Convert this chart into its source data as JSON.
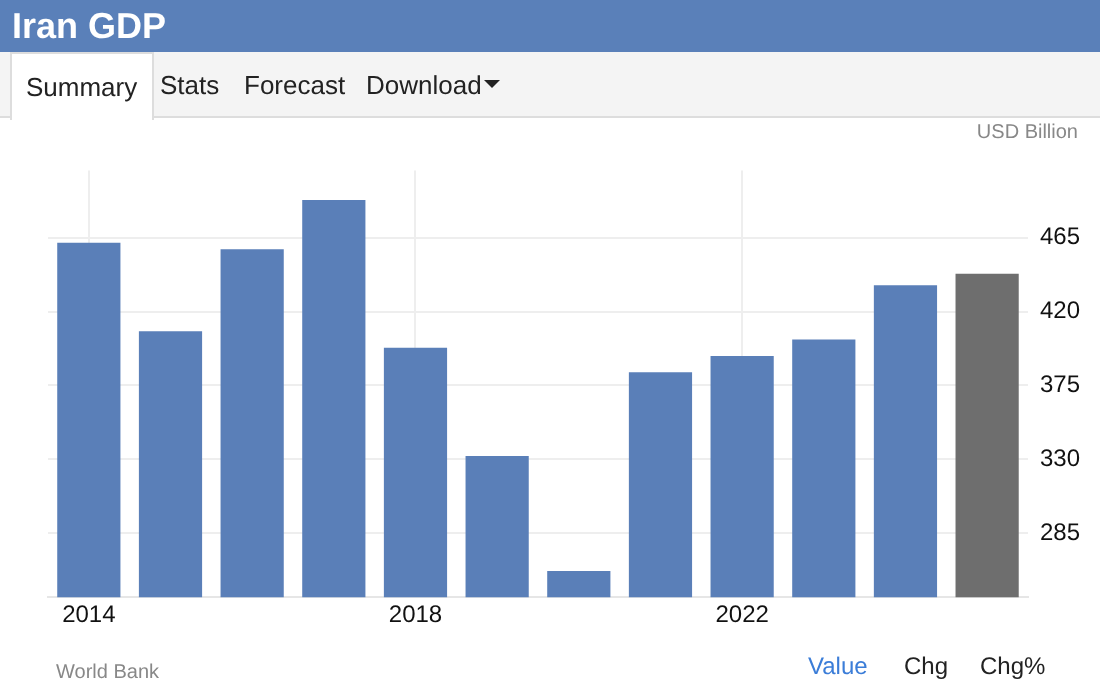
{
  "chart_data": {
    "type": "bar",
    "title": "Iran GDP",
    "ylabel": "USD Billion",
    "categories": [
      "2014",
      null,
      null,
      null,
      "2018",
      null,
      null,
      null,
      "2022",
      null,
      null,
      null
    ],
    "values": [
      462,
      408,
      458,
      488,
      398,
      332,
      262,
      383,
      393,
      403,
      436,
      443
    ],
    "colors": [
      "#5a7fb8",
      "#5a7fb8",
      "#5a7fb8",
      "#5a7fb8",
      "#5a7fb8",
      "#5a7fb8",
      "#5a7fb8",
      "#5a7fb8",
      "#5a7fb8",
      "#5a7fb8",
      "#5a7fb8",
      "#6e6e6e"
    ],
    "ylim": [
      246,
      506
    ],
    "yticks": [
      285,
      330,
      375,
      420,
      465
    ],
    "grid": true,
    "annotations": [
      "Summary",
      "Stats",
      "Forecast",
      "Download",
      "World Bank",
      "Value",
      "Chg",
      "Chg%"
    ]
  }
}
